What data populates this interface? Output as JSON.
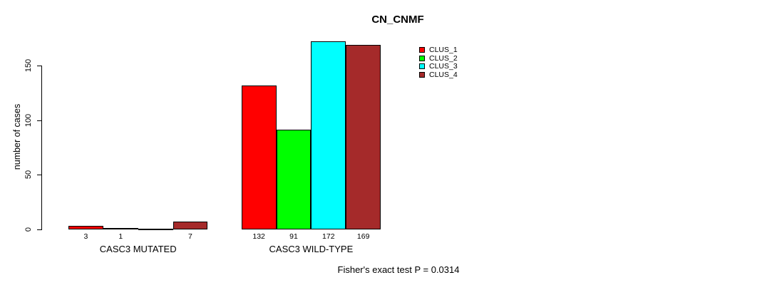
{
  "title": "CN_CNMF",
  "y_axis": {
    "label": "number of cases",
    "tick_labels": [
      "0",
      "50",
      "100",
      "150"
    ]
  },
  "legend": {
    "items": [
      {
        "label": "CLUS_1",
        "color": "#FF0000"
      },
      {
        "label": "CLUS_2",
        "color": "#00FF00"
      },
      {
        "label": "CLUS_3",
        "color": "#00FFFF"
      },
      {
        "label": "CLUS_4",
        "color": "#A52A2A"
      }
    ]
  },
  "footnote": "Fisher's exact test P = 0.0314",
  "chart_data": {
    "type": "bar",
    "title": "CN_CNMF",
    "xlabel": "",
    "ylabel": "number of cases",
    "ylim": [
      0,
      172
    ],
    "y_ticks": [
      0,
      50,
      100,
      150
    ],
    "grid": false,
    "legend_position": "top-right",
    "categories": [
      "CASC3 MUTATED",
      "CASC3 WILD-TYPE"
    ],
    "series": [
      {
        "name": "CLUS_1",
        "color": "#FF0000",
        "values": [
          3,
          132
        ]
      },
      {
        "name": "CLUS_2",
        "color": "#00FF00",
        "values": [
          1,
          91
        ]
      },
      {
        "name": "CLUS_3",
        "color": "#00FFFF",
        "values": [
          0,
          172
        ]
      },
      {
        "name": "CLUS_4",
        "color": "#A52A2A",
        "values": [
          7,
          169
        ]
      }
    ],
    "bar_value_labels": [
      [
        "3",
        "1",
        "",
        "7"
      ],
      [
        "132",
        "91",
        "172",
        "169"
      ]
    ],
    "annotation": "Fisher's exact test P = 0.0314"
  }
}
